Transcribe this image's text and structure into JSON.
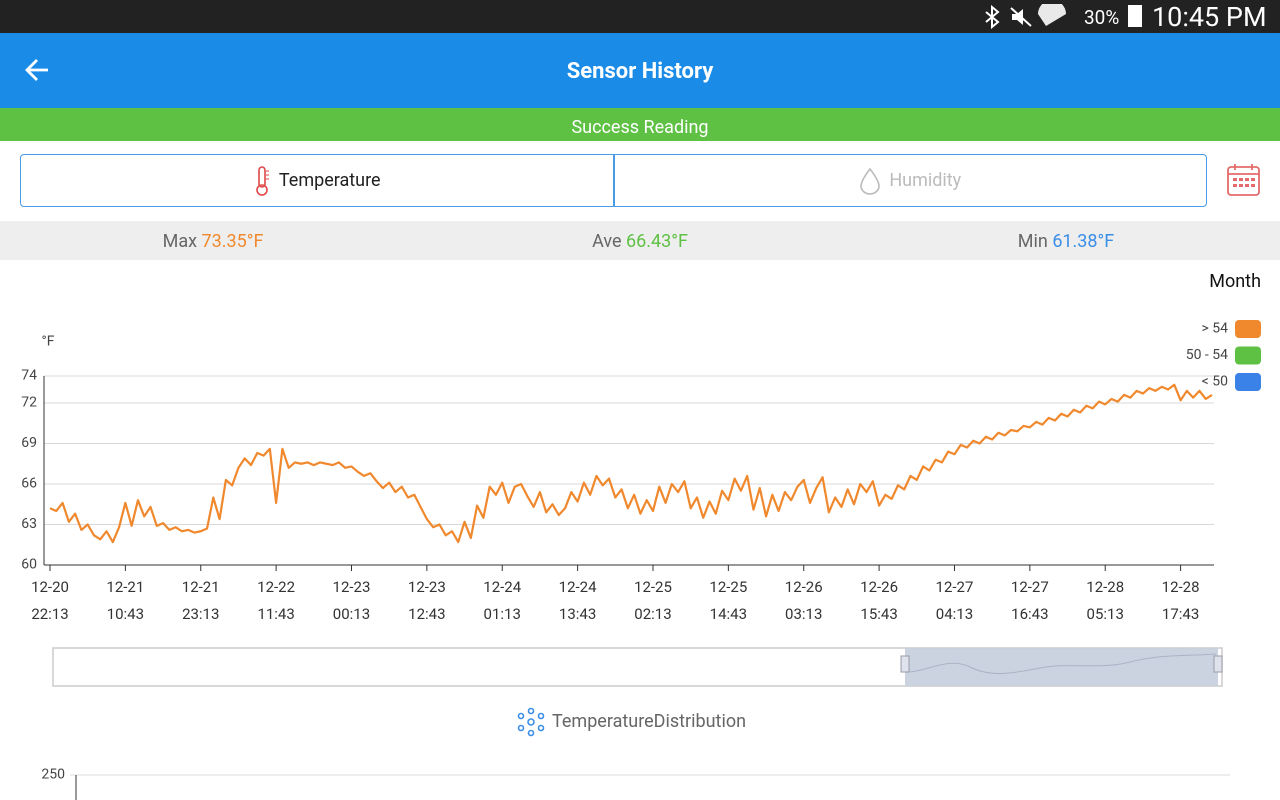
{
  "status_bar": {
    "battery": "30%",
    "time": "10:45 PM"
  },
  "app_bar": {
    "title": "Sensor History"
  },
  "banner": "Success Reading",
  "tabs": [
    "Temperature",
    "Humidity"
  ],
  "stats": {
    "max_label": "Max",
    "max": "73.35°F",
    "ave_label": "Ave",
    "ave": "66.43°F",
    "min_label": "Min",
    "min": "61.38°F"
  },
  "range_label": "Month",
  "chart_data": {
    "type": "line",
    "y_label": "°F",
    "legend": [
      {
        "name": "> 54",
        "color": "#f0882d"
      },
      {
        "name": "50 - 54",
        "color": "#5ec144"
      },
      {
        "name": "< 50",
        "color": "#3b82e8"
      }
    ],
    "series": [
      {
        "color": "#f0882d",
        "values": [
          64.2,
          64.0,
          64.6,
          63.2,
          63.8,
          62.6,
          63.0,
          62.2,
          61.9,
          62.5,
          61.7,
          62.8,
          64.6,
          62.9,
          64.8,
          63.6,
          64.3,
          62.9,
          63.1,
          62.6,
          62.8,
          62.5,
          62.6,
          62.4,
          62.5,
          62.7,
          65.0,
          63.4,
          66.3,
          65.9,
          67.2,
          67.9,
          67.4,
          68.3,
          68.1,
          68.6,
          64.6,
          68.6,
          67.2,
          67.6,
          67.5,
          67.6,
          67.4,
          67.6,
          67.5,
          67.4,
          67.6,
          67.2,
          67.3,
          66.9,
          66.6,
          66.8,
          66.2,
          65.7,
          66.1,
          65.4,
          65.8,
          65.0,
          65.2,
          64.3,
          63.4,
          62.8,
          63.0,
          62.2,
          62.5,
          61.7,
          63.2,
          62.0,
          64.4,
          63.5,
          65.8,
          65.2,
          66.1,
          64.6,
          65.8,
          66.0,
          65.1,
          64.3,
          65.4,
          63.9,
          64.5,
          63.7,
          64.2,
          65.4,
          64.7,
          66.1,
          65.2,
          66.6,
          65.9,
          66.4,
          65.0,
          65.6,
          64.2,
          65.2,
          63.8,
          64.8,
          64.0,
          65.8,
          64.6,
          66.0,
          65.4,
          66.2,
          64.2,
          65.0,
          63.5,
          64.7,
          63.8,
          65.5,
          64.8,
          66.4,
          65.5,
          66.6,
          64.1,
          65.7,
          63.6,
          65.2,
          64.0,
          65.4,
          64.8,
          65.8,
          66.3,
          64.6,
          65.7,
          66.5,
          63.9,
          65.0,
          64.3,
          65.6,
          64.5,
          66.0,
          65.4,
          66.2,
          64.4,
          65.2,
          64.9,
          65.9,
          65.6,
          66.6,
          66.3,
          67.3,
          67.0,
          67.8,
          67.6,
          68.4,
          68.2,
          68.9,
          68.7,
          69.2,
          69.0,
          69.5,
          69.3,
          69.8,
          69.6,
          70.0,
          69.9,
          70.3,
          70.2,
          70.6,
          70.4,
          70.9,
          70.7,
          71.2,
          71.0,
          71.5,
          71.3,
          71.8,
          71.6,
          72.1,
          71.9,
          72.3,
          72.1,
          72.6,
          72.4,
          72.9,
          72.7,
          73.1,
          72.9,
          73.2,
          73.0,
          73.35,
          72.2,
          72.9,
          72.4,
          72.9,
          72.3,
          72.6
        ]
      }
    ],
    "xlim": [
      0,
      185
    ],
    "xticks": [
      {
        "value": 0,
        "label": [
          "12-20",
          "22:13"
        ]
      },
      {
        "value": 12,
        "label": [
          "12-21",
          "10:43"
        ]
      },
      {
        "value": 24,
        "label": [
          "12-21",
          "23:13"
        ]
      },
      {
        "value": 36,
        "label": [
          "12-22",
          "11:43"
        ]
      },
      {
        "value": 48,
        "label": [
          "12-23",
          "00:13"
        ]
      },
      {
        "value": 60,
        "label": [
          "12-23",
          "12:43"
        ]
      },
      {
        "value": 72,
        "label": [
          "12-24",
          "01:13"
        ]
      },
      {
        "value": 84,
        "label": [
          "12-24",
          "13:43"
        ]
      },
      {
        "value": 96,
        "label": [
          "12-25",
          "02:13"
        ]
      },
      {
        "value": 108,
        "label": [
          "12-25",
          "14:43"
        ]
      },
      {
        "value": 120,
        "label": [
          "12-26",
          "03:13"
        ]
      },
      {
        "value": 132,
        "label": [
          "12-26",
          "15:43"
        ]
      },
      {
        "value": 144,
        "label": [
          "12-27",
          "04:13"
        ]
      },
      {
        "value": 156,
        "label": [
          "12-27",
          "16:43"
        ]
      },
      {
        "value": 168,
        "label": [
          "12-28",
          "05:13"
        ]
      },
      {
        "value": 180,
        "label": [
          "12-28",
          "17:43"
        ]
      }
    ],
    "ylim": [
      60,
      74
    ],
    "yticks": [
      60,
      63,
      66,
      69,
      72,
      74
    ],
    "grid": true
  },
  "distribution": {
    "title": "TemperatureDistribution",
    "tick": "250"
  }
}
